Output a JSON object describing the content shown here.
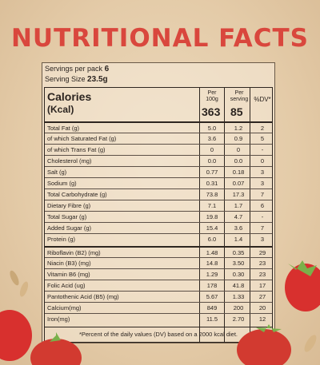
{
  "title": "NUTRITIONAL FACTS",
  "servings": {
    "per_pack_label": "Servings per pack",
    "per_pack_value": "6",
    "size_label": "Serving Size",
    "size_value": "23.5g"
  },
  "calories": {
    "label": "Calories",
    "unit": "(Kcal)",
    "per100_head": "Per 100g",
    "perserv_head": "Per serving",
    "dv_head": "%DV*",
    "per100": "363",
    "perserv": "85"
  },
  "rows": [
    {
      "name": "Total Fat (g)",
      "p100": "5.0",
      "ps": "1.2",
      "dv": "2"
    },
    {
      "name": "of which Saturated Fat (g)",
      "p100": "3.6",
      "ps": "0.9",
      "dv": "5"
    },
    {
      "name": "of which Trans Fat (g)",
      "p100": "0",
      "ps": "0",
      "dv": "-"
    },
    {
      "name": "Cholesterol (mg)",
      "p100": "0.0",
      "ps": "0.0",
      "dv": "0"
    },
    {
      "name": "Salt (g)",
      "p100": "0.77",
      "ps": "0.18",
      "dv": "3"
    },
    {
      "name": "Sodium (g)",
      "p100": "0.31",
      "ps": "0.07",
      "dv": "3"
    },
    {
      "name": "Total Carbohydrate (g)",
      "p100": "73.8",
      "ps": "17.3",
      "dv": "7"
    },
    {
      "name": "Dietary Fibre (g)",
      "p100": "7.1",
      "ps": "1.7",
      "dv": "6"
    },
    {
      "name": "Total Sugar (g)",
      "p100": "19.8",
      "ps": "4.7",
      "dv": "-"
    },
    {
      "name": "Added Sugar (g)",
      "p100": "15.4",
      "ps": "3.6",
      "dv": "7"
    },
    {
      "name": "Protein (g)",
      "p100": "6.0",
      "ps": "1.4",
      "dv": "3"
    },
    {
      "name": "Riboflavin (B2) (mg)",
      "p100": "1.48",
      "ps": "0.35",
      "dv": "29"
    },
    {
      "name": "Niacin (B3) (mg)",
      "p100": "14.8",
      "ps": "3.50",
      "dv": "23"
    },
    {
      "name": "Vitamin B6 (mg)",
      "p100": "1.29",
      "ps": "0.30",
      "dv": "23"
    },
    {
      "name": "Folic Acid (ug)",
      "p100": "178",
      "ps": "41.8",
      "dv": "17"
    },
    {
      "name": "Pantothenic Acid (B5) (mg)",
      "p100": "5.67",
      "ps": "1.33",
      "dv": "27"
    },
    {
      "name": "Calcium(mg)",
      "p100": "849",
      "ps": "200",
      "dv": "20"
    },
    {
      "name": "Iron(mg)",
      "p100": "11.5",
      "ps": "2.70",
      "dv": "12"
    }
  ],
  "footnote": "*Percent of the daily values (DV) based on a 2000 kcal diet.",
  "decor": {
    "strawberry_color": "#d8302e",
    "leaf_color": "#7ab04a"
  }
}
